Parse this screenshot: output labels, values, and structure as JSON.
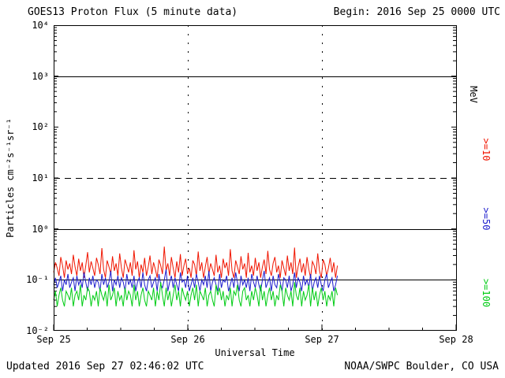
{
  "header": {
    "title": "GOES13 Proton Flux (5 minute data)",
    "begin_label": "Begin: 2016 Sep 25 0000 UTC"
  },
  "footer": {
    "updated": "Updated 2016 Sep 27 02:46:02 UTC",
    "source": "NOAA/SWPC Boulder, CO USA"
  },
  "axes": {
    "y_label": "Particles cm⁻²s⁻¹sr⁻¹",
    "x_label": "Universal Time",
    "y_ticks": [
      "10⁴",
      "10³",
      "10²",
      "10¹",
      "10⁰",
      "10⁻¹",
      "10⁻²"
    ],
    "x_ticks": [
      "Sep 25",
      "Sep 26",
      "Sep 27",
      "Sep 28"
    ]
  },
  "right_labels": {
    "unit": "MeV",
    "entries": [
      {
        "label": ">=10",
        "color": "#f01500"
      },
      {
        "label": ">=50",
        "color": "#1c1ccd"
      },
      {
        "label": ">=100",
        "color": "#00cc14"
      }
    ]
  },
  "chart_data": {
    "type": "line",
    "title": "GOES13 Proton Flux (5 minute data)",
    "xlabel": "Universal Time",
    "ylabel": "Particles cm⁻²s⁻¹sr⁻¹",
    "y_scale": "log",
    "ylim": [
      0.01,
      10000
    ],
    "x_days_total": 3,
    "x_tick_labels": [
      "Sep 25",
      "Sep 26",
      "Sep 27",
      "Sep 28"
    ],
    "begin_utc": "2016 Sep 25 0000 UTC",
    "updated_utc": "2016 Sep 27 02:46:02 UTC",
    "data_start_day": 0,
    "data_end_day": 2.115,
    "gridlines": {
      "solid_y": [
        1000,
        1,
        0.1
      ],
      "dashed_y": [
        10
      ],
      "dotted_x_days": [
        1,
        2
      ]
    },
    "series": [
      {
        "name": ">=10 MeV",
        "color": "#f01500",
        "values": [
          0.14,
          0.22,
          0.17,
          0.12,
          0.28,
          0.19,
          0.11,
          0.24,
          0.16,
          0.21,
          0.13,
          0.31,
          0.18,
          0.12,
          0.26,
          0.15,
          0.22,
          0.11,
          0.19,
          0.35,
          0.14,
          0.23,
          0.17,
          0.12,
          0.27,
          0.2,
          0.13,
          0.42,
          0.16,
          0.11,
          0.24,
          0.18,
          0.13,
          0.29,
          0.15,
          0.21,
          0.12,
          0.33,
          0.17,
          0.11,
          0.25,
          0.19,
          0.14,
          0.22,
          0.12,
          0.38,
          0.16,
          0.23,
          0.11,
          0.2,
          0.14,
          0.27,
          0.12,
          0.18,
          0.3,
          0.13,
          0.22,
          0.16,
          0.11,
          0.25,
          0.19,
          0.13,
          0.45,
          0.15,
          0.21,
          0.12,
          0.28,
          0.17,
          0.11,
          0.23,
          0.14,
          0.32,
          0.12,
          0.19,
          0.26,
          0.13,
          0.17,
          0.11,
          0.24,
          0.2,
          0.12,
          0.36,
          0.15,
          0.22,
          0.11,
          0.18,
          0.28,
          0.13,
          0.21,
          0.16,
          0.12,
          0.31,
          0.14,
          0.19,
          0.11,
          0.26,
          0.17,
          0.22,
          0.12,
          0.4,
          0.15,
          0.11,
          0.24,
          0.18,
          0.13,
          0.29,
          0.16,
          0.21,
          0.11,
          0.34,
          0.14,
          0.19,
          0.12,
          0.27,
          0.15,
          0.22,
          0.11,
          0.18,
          0.25,
          0.13,
          0.37,
          0.16,
          0.12,
          0.21,
          0.28,
          0.14,
          0.19,
          0.11,
          0.24,
          0.17,
          0.12,
          0.3,
          0.15,
          0.22,
          0.13,
          0.43,
          0.11,
          0.18,
          0.26,
          0.14,
          0.21,
          0.12,
          0.28,
          0.16,
          0.11,
          0.23,
          0.19,
          0.13,
          0.33,
          0.15,
          0.11,
          0.25,
          0.2,
          0.12,
          0.17,
          0.27,
          0.14,
          0.22,
          0.11,
          0.19
        ]
      },
      {
        "name": ">=50 MeV",
        "color": "#1c1ccd",
        "values": [
          0.08,
          0.11,
          0.07,
          0.09,
          0.12,
          0.06,
          0.1,
          0.08,
          0.13,
          0.07,
          0.09,
          0.11,
          0.06,
          0.12,
          0.08,
          0.1,
          0.07,
          0.14,
          0.09,
          0.06,
          0.11,
          0.08,
          0.12,
          0.07,
          0.1,
          0.09,
          0.06,
          0.13,
          0.08,
          0.11,
          0.07,
          0.09,
          0.15,
          0.06,
          0.1,
          0.08,
          0.12,
          0.07,
          0.11,
          0.09,
          0.06,
          0.13,
          0.08,
          0.1,
          0.07,
          0.12,
          0.06,
          0.09,
          0.11,
          0.07,
          0.14,
          0.08,
          0.06,
          0.1,
          0.12,
          0.07,
          0.09,
          0.11,
          0.06,
          0.13,
          0.08,
          0.07,
          0.1,
          0.16,
          0.06,
          0.09,
          0.12,
          0.07,
          0.11,
          0.08,
          0.06,
          0.14,
          0.09,
          0.1,
          0.07,
          0.12,
          0.06,
          0.08,
          0.11,
          0.07,
          0.13,
          0.09,
          0.06,
          0.1,
          0.08,
          0.12,
          0.07,
          0.15,
          0.06,
          0.09,
          0.11,
          0.08,
          0.06,
          0.13,
          0.07,
          0.1,
          0.09,
          0.12,
          0.06,
          0.08,
          0.11,
          0.07,
          0.14,
          0.09,
          0.06,
          0.12,
          0.08,
          0.1,
          0.07,
          0.11,
          0.06,
          0.13,
          0.09,
          0.07,
          0.12,
          0.08,
          0.06,
          0.1,
          0.15,
          0.07,
          0.09,
          0.11,
          0.06,
          0.12,
          0.08,
          0.07,
          0.13,
          0.09,
          0.06,
          0.11,
          0.1,
          0.07,
          0.12,
          0.06,
          0.08,
          0.14,
          0.07,
          0.11,
          0.09,
          0.06,
          0.12,
          0.08,
          0.1,
          0.07,
          0.13,
          0.06,
          0.09,
          0.11,
          0.07,
          0.12,
          0.08,
          0.06,
          0.1,
          0.13,
          0.07,
          0.09,
          0.11,
          0.06,
          0.08,
          0.12
        ]
      },
      {
        "name": ">=100 MeV",
        "color": "#00cc14",
        "values": [
          0.04,
          0.06,
          0.03,
          0.05,
          0.07,
          0.04,
          0.03,
          0.06,
          0.05,
          0.04,
          0.07,
          0.03,
          0.05,
          0.06,
          0.04,
          0.08,
          0.03,
          0.05,
          0.04,
          0.07,
          0.06,
          0.03,
          0.05,
          0.04,
          0.06,
          0.03,
          0.07,
          0.05,
          0.04,
          0.06,
          0.03,
          0.08,
          0.04,
          0.05,
          0.07,
          0.03,
          0.06,
          0.04,
          0.05,
          0.03,
          0.07,
          0.04,
          0.06,
          0.05,
          0.03,
          0.08,
          0.04,
          0.06,
          0.03,
          0.05,
          0.07,
          0.04,
          0.03,
          0.06,
          0.05,
          0.04,
          0.07,
          0.03,
          0.06,
          0.04,
          0.09,
          0.05,
          0.03,
          0.07,
          0.04,
          0.06,
          0.03,
          0.05,
          0.08,
          0.04,
          0.06,
          0.03,
          0.07,
          0.05,
          0.04,
          0.06,
          0.03,
          0.05,
          0.07,
          0.04,
          0.08,
          0.03,
          0.06,
          0.05,
          0.04,
          0.07,
          0.03,
          0.05,
          0.06,
          0.04,
          0.03,
          0.08,
          0.05,
          0.07,
          0.04,
          0.06,
          0.03,
          0.05,
          0.04,
          0.07,
          0.03,
          0.06,
          0.05,
          0.08,
          0.04,
          0.03,
          0.06,
          0.07,
          0.04,
          0.05,
          0.03,
          0.06,
          0.04,
          0.07,
          0.05,
          0.03,
          0.08,
          0.04,
          0.06,
          0.03,
          0.05,
          0.07,
          0.04,
          0.06,
          0.03,
          0.05,
          0.04,
          0.08,
          0.06,
          0.03,
          0.07,
          0.05,
          0.04,
          0.06,
          0.03,
          0.09,
          0.05,
          0.04,
          0.07,
          0.03,
          0.06,
          0.04,
          0.05,
          0.08,
          0.03,
          0.07,
          0.04,
          0.06,
          0.03,
          0.05,
          0.07,
          0.04,
          0.06,
          0.03,
          0.05,
          0.04,
          0.06,
          0.03,
          0.07,
          0.05
        ]
      }
    ]
  }
}
